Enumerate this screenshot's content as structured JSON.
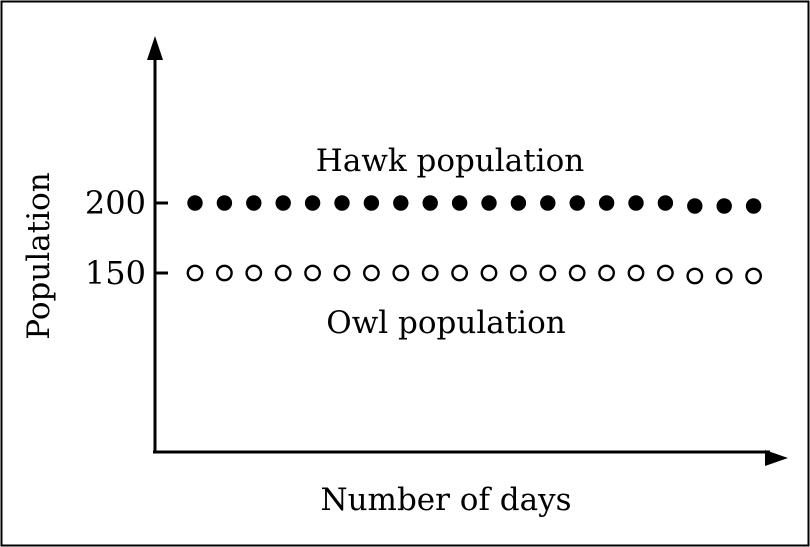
{
  "chart_data": {
    "type": "scatter",
    "x": [
      1,
      2,
      3,
      4,
      5,
      6,
      7,
      8,
      9,
      10,
      11,
      12,
      13,
      14,
      15,
      16,
      17,
      18,
      19,
      20
    ],
    "series": [
      {
        "name": "Hawk population",
        "values": [
          200,
          200,
          200,
          200,
          200,
          200,
          200,
          200,
          200,
          200,
          200,
          200,
          200,
          200,
          200,
          200,
          200,
          200,
          200,
          200
        ],
        "marker": "filled-circle",
        "color": "#000000"
      },
      {
        "name": "Owl population",
        "values": [
          150,
          150,
          150,
          150,
          150,
          150,
          150,
          150,
          150,
          150,
          150,
          150,
          150,
          150,
          150,
          150,
          150,
          150,
          150,
          150
        ],
        "marker": "open-circle",
        "color": "#000000"
      }
    ],
    "xlabel": "Number of days",
    "ylabel": "Population",
    "y_ticks": [
      {
        "value": 150,
        "label": "150"
      },
      {
        "value": 200,
        "label": "200"
      }
    ],
    "grid": false,
    "legend": "none",
    "axis_color": "#000000"
  }
}
